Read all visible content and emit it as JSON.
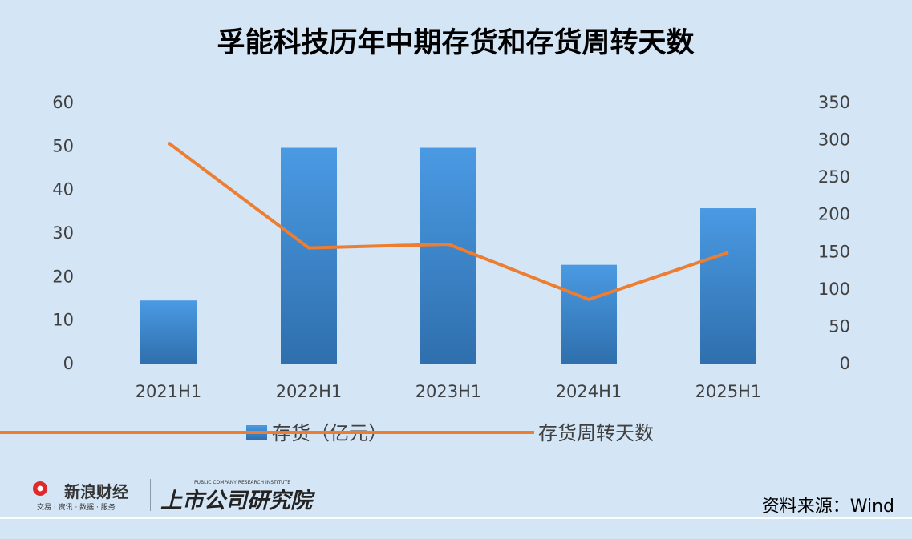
{
  "chart_data": {
    "type": "bar+line",
    "title": "孚能科技历年中期存货和存货周转天数",
    "categories": [
      "2021H1",
      "2022H1",
      "2023H1",
      "2024H1",
      "2025H1"
    ],
    "series": [
      {
        "name": "存货（亿元）",
        "type": "bar",
        "axis": "left",
        "values": [
          14.5,
          49.6,
          49.6,
          22.7,
          35.7
        ]
      },
      {
        "name": "存货周转天数",
        "type": "line",
        "axis": "right",
        "values": [
          296,
          155,
          160,
          86,
          149
        ]
      }
    ],
    "y_left": {
      "ticks": [
        "0",
        "10",
        "20",
        "30",
        "40",
        "50",
        "60"
      ],
      "ylim": [
        0,
        60
      ]
    },
    "y_right": {
      "ticks": [
        "0",
        "50",
        "100",
        "150",
        "200",
        "250",
        "300",
        "350"
      ],
      "ylim": [
        0,
        350
      ]
    },
    "grid": false,
    "legend_position": "bottom"
  },
  "colors": {
    "bar": "#3a86d1",
    "line": "#ed7d31",
    "background": "#d4e5f5"
  },
  "footer": {
    "source": "资料来源：Wind",
    "logo_sina_text": "新浪财经",
    "logo_sina_sub": "交易 · 资讯 · 数据 · 服务",
    "logo_inst_text": "上市公司研究院",
    "logo_inst_sub": "PUBLIC COMPANY RESEARCH INSTITUTE"
  }
}
